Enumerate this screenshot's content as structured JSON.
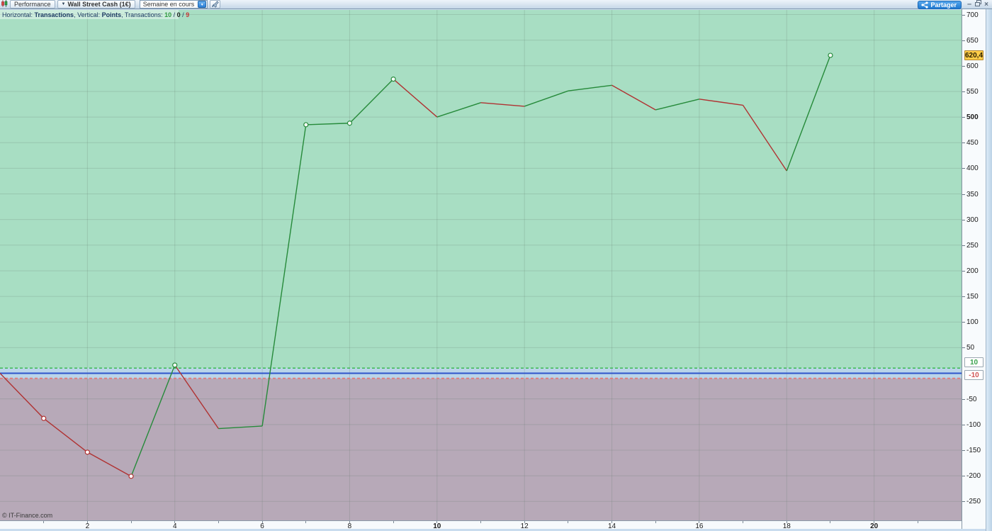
{
  "toolbar": {
    "performance_label": "Performance",
    "instrument_label": "Wall Street Cash (1€)",
    "period_value": "Semaine en cours",
    "share_label": "Partager",
    "minimize_glyph": "–",
    "close_glyph": "×"
  },
  "chart_header": {
    "seg1": "Horizontal: ",
    "seg2": "Transactions",
    "seg3": ", Vertical: ",
    "seg4": "Points",
    "seg5": ", Transactions: ",
    "wins": "10",
    "slash": " / ",
    "neutral": "0",
    "losses": "9"
  },
  "footer": {
    "copyright": "© IT-Finance.com"
  },
  "chart_data": {
    "type": "line",
    "title": "Performance equity curve (points per transaction)",
    "x": [
      0,
      1,
      2,
      3,
      4,
      5,
      6,
      7,
      8,
      9,
      10,
      11,
      12,
      13,
      14,
      15,
      16,
      17,
      18,
      19
    ],
    "values": [
      0,
      -88,
      -154,
      -201,
      16,
      -108,
      -103,
      485,
      488,
      574,
      500,
      528,
      521,
      551,
      562,
      514,
      535,
      523,
      395,
      620.4
    ],
    "marker_points": [
      1,
      2,
      3,
      4,
      7,
      8,
      9,
      19
    ],
    "last_value": 620.4,
    "last_value_label": "620,4",
    "upper_threshold": 10,
    "lower_threshold": -10,
    "upper_box_label": "10",
    "lower_box_label": "-10",
    "zero_line": 0,
    "xlim": [
      0,
      22
    ],
    "ylim": [
      -287,
      709
    ],
    "y_ticks": [
      700,
      650,
      600,
      550,
      500,
      450,
      400,
      350,
      300,
      250,
      200,
      150,
      100,
      50,
      -50,
      -100,
      -150,
      -200,
      -250
    ],
    "y_bold_ticks": [
      500
    ],
    "x_ticks": [
      2,
      4,
      6,
      8,
      10,
      12,
      14,
      16,
      18,
      20
    ],
    "x_bold_ticks": [
      10,
      20
    ],
    "x_grid": [
      2,
      4,
      6,
      8,
      10,
      12,
      14,
      16,
      18,
      20,
      22
    ],
    "x_minor_tick_max": 22,
    "grid": true,
    "colors": {
      "win_zone_bg": "#a8dec3",
      "band_bg": "#bad4e9",
      "loss_zone_bg": "#b7a9b8",
      "zero_line": "#2f55cb",
      "upper_dash": "#3db954",
      "lower_dash": "#de7f7f",
      "win_segment": "#268a3a",
      "loss_segment": "#b03232",
      "grid_line": "rgba(96,118,106,0.22)"
    }
  }
}
